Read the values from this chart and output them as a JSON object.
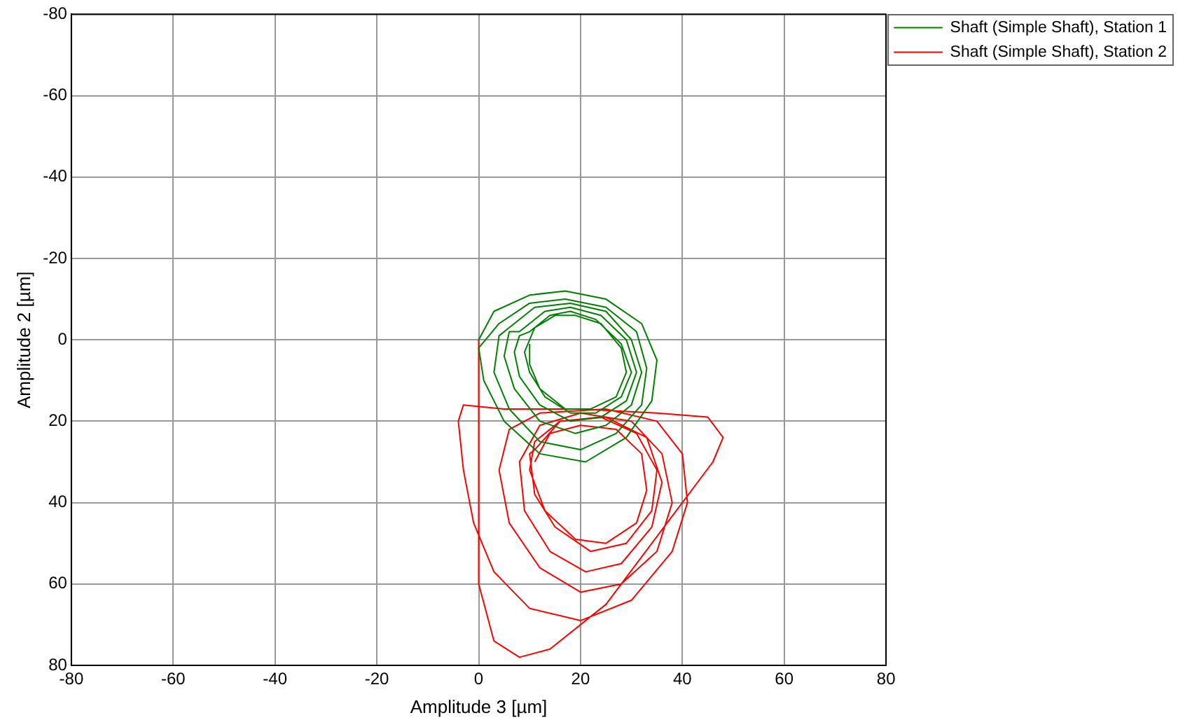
{
  "chart_data": {
    "type": "line",
    "xlabel": "Amplitude 3 [µm]",
    "ylabel": "Amplitude 2 [µm]",
    "xlim": [
      -80,
      80
    ],
    "ylim": [
      80,
      -80
    ],
    "xticks": [
      -80,
      -60,
      -40,
      -20,
      0,
      20,
      40,
      60,
      80
    ],
    "yticks": [
      80,
      60,
      40,
      20,
      0,
      -20,
      -40,
      -60,
      -80
    ],
    "grid": true,
    "legend": "top right",
    "marker": "none",
    "line_style": "solid",
    "series": [
      {
        "name": "Shaft (Simple Shaft), Station 1",
        "color": "#008000",
        "x": [
          0,
          3,
          10,
          17,
          25,
          32,
          35,
          34,
          29,
          21,
          12,
          5,
          1,
          0,
          4,
          10,
          17,
          25,
          31,
          33,
          32,
          27,
          20,
          12,
          6,
          3,
          4,
          6,
          11,
          18,
          25,
          30,
          32,
          30,
          25,
          19,
          12,
          7,
          5,
          6,
          8,
          13,
          18,
          24,
          29,
          31,
          29,
          24,
          18,
          12,
          8,
          7,
          8,
          10,
          14,
          18,
          23,
          28,
          30,
          28,
          23,
          18,
          13,
          10,
          9,
          11,
          15,
          19,
          24,
          28,
          29,
          27,
          22,
          17,
          12,
          10,
          10
        ],
        "values": [
          0,
          -7,
          -11,
          -12,
          -10,
          -4,
          5,
          15,
          24,
          30,
          28,
          20,
          10,
          2,
          -4,
          -9,
          -10,
          -8,
          -2,
          7,
          16,
          23,
          27,
          25,
          17,
          8,
          -1,
          -3,
          -8,
          -9,
          -7,
          0,
          8,
          16,
          21,
          23,
          20,
          12,
          4,
          -2,
          -2,
          -7,
          -8,
          -6,
          0,
          8,
          15,
          19,
          20,
          16,
          9,
          3,
          -1,
          -2,
          -6,
          -7,
          -5,
          1,
          8,
          14,
          18,
          18,
          14,
          8,
          3,
          -3,
          -6,
          -6,
          -4,
          2,
          8,
          14,
          17,
          17,
          12,
          6,
          1
        ]
      },
      {
        "name": "Shaft (Simple Shaft), Station 2",
        "color": "#ff0000",
        "x": [
          0,
          0,
          3,
          8,
          14,
          25,
          37,
          46,
          48,
          45,
          35,
          20,
          5,
          -3,
          -4,
          -3,
          -1,
          3,
          10,
          20,
          30,
          38,
          41,
          40,
          35,
          25,
          12,
          6,
          4,
          6,
          12,
          20,
          28,
          35,
          38,
          36,
          30,
          20,
          12,
          8,
          9,
          14,
          21,
          28,
          34,
          36,
          33,
          25,
          16,
          11,
          10,
          11,
          15,
          22,
          29,
          34,
          35,
          31,
          24,
          16,
          11,
          10,
          13,
          19,
          25,
          31,
          33,
          32,
          27,
          20,
          14,
          11
        ],
        "values": [
          0,
          60,
          74,
          78,
          76,
          65,
          45,
          30,
          24,
          19,
          18,
          17,
          17,
          16,
          20,
          32,
          45,
          57,
          66,
          69,
          64,
          52,
          40,
          28,
          20,
          17,
          18,
          22,
          32,
          45,
          56,
          62,
          60,
          52,
          40,
          28,
          20,
          18,
          21,
          30,
          42,
          52,
          57,
          55,
          46,
          35,
          24,
          19,
          20,
          27,
          28,
          38,
          46,
          52,
          50,
          42,
          32,
          23,
          19,
          20,
          25,
          32,
          42,
          49,
          50,
          45,
          37,
          28,
          22,
          21,
          23,
          30
        ]
      }
    ]
  }
}
